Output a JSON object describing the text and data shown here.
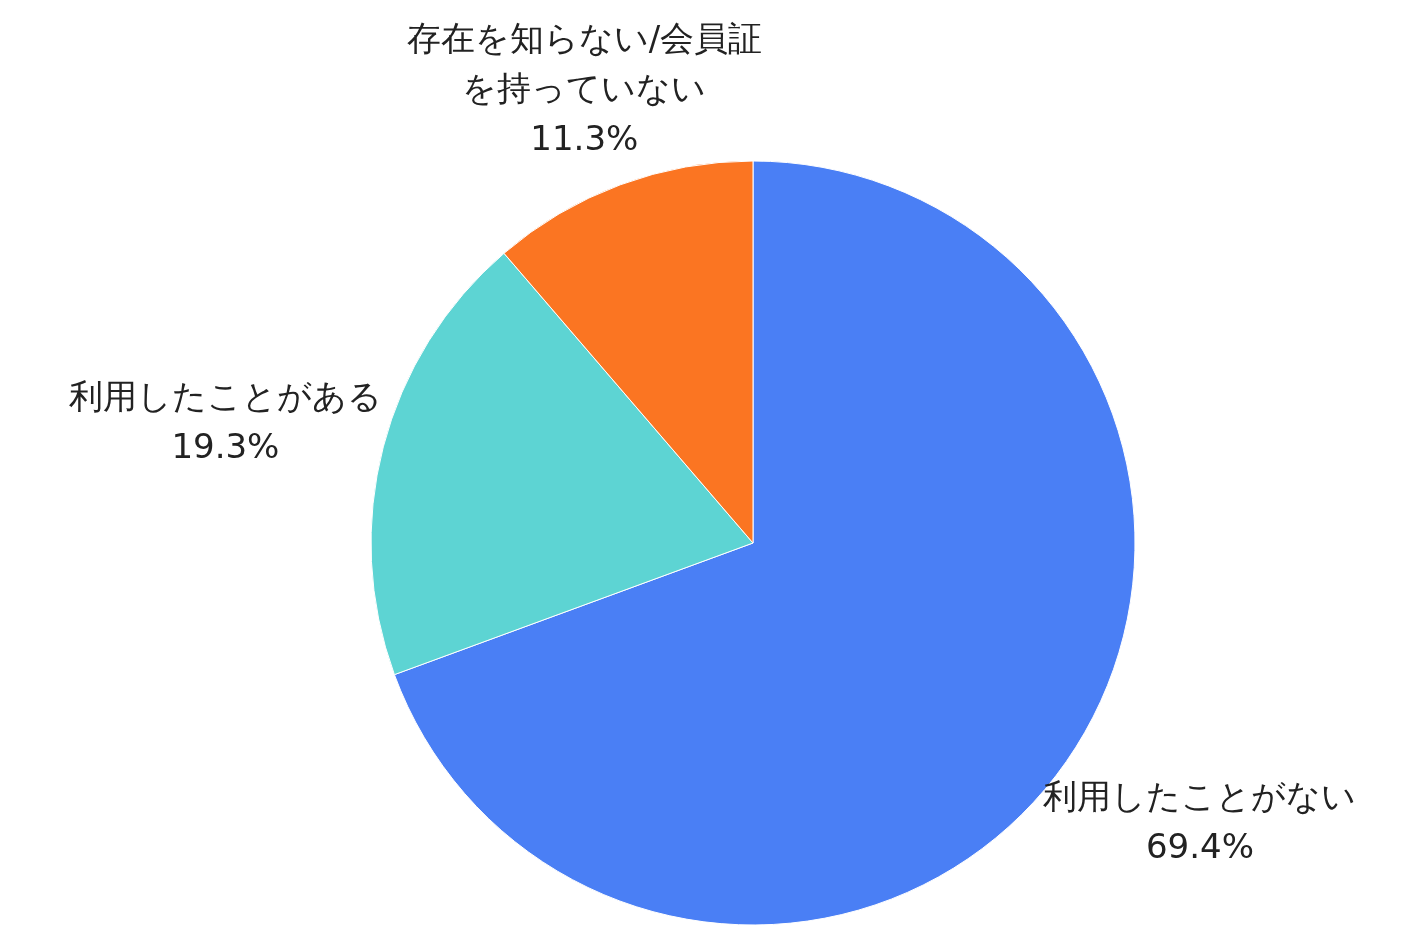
{
  "chart_data": {
    "type": "pie",
    "categories": [
      "利用したことがない",
      "利用したことがある",
      "存在を知らない/会員証を持っていない"
    ],
    "values": [
      69.4,
      19.3,
      11.3
    ],
    "colors": [
      "#4a7ff5",
      "#5dd4d3",
      "#fb7522"
    ],
    "value_labels": [
      "69.4%",
      "19.3%",
      "11.3%"
    ]
  }
}
